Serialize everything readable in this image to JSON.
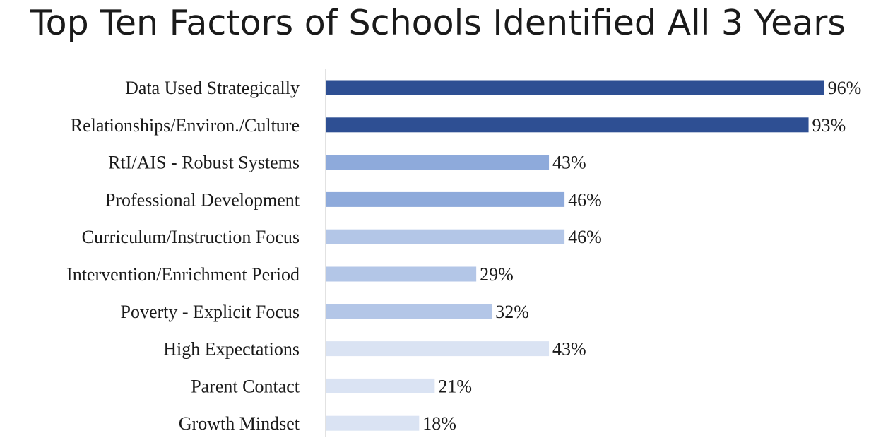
{
  "title": "Top Ten Factors of Schools Identified All 3 Years",
  "chart_data": {
    "type": "bar",
    "orientation": "horizontal",
    "title": "Top Ten Factors of Schools Identified All 3 Years",
    "xlabel": "",
    "ylabel": "",
    "xlim": [
      0,
      100
    ],
    "grid": false,
    "categories": [
      "Data Used Strategically",
      "Relationships/Environ./Culture",
      "RtI/AIS - Robust Systems",
      "Professional Development",
      "Curriculum/Instruction Focus",
      "Intervention/Enrichment Period",
      "Poverty - Explicit Focus",
      "High Expectations",
      "Parent Contact",
      "Growth Mindset"
    ],
    "values": [
      96,
      93,
      43,
      46,
      46,
      29,
      32,
      43,
      21,
      18
    ],
    "value_labels": [
      "96%",
      "93%",
      "43%",
      "46%",
      "46%",
      "29%",
      "32%",
      "43%",
      "21%",
      "18%"
    ],
    "bar_colors": [
      "#2e4f93",
      "#2e4f93",
      "#8eaadb",
      "#8eaadb",
      "#b3c6e7",
      "#b3c6e7",
      "#b3c6e7",
      "#dae3f3",
      "#dae3f3",
      "#dae3f3"
    ]
  }
}
